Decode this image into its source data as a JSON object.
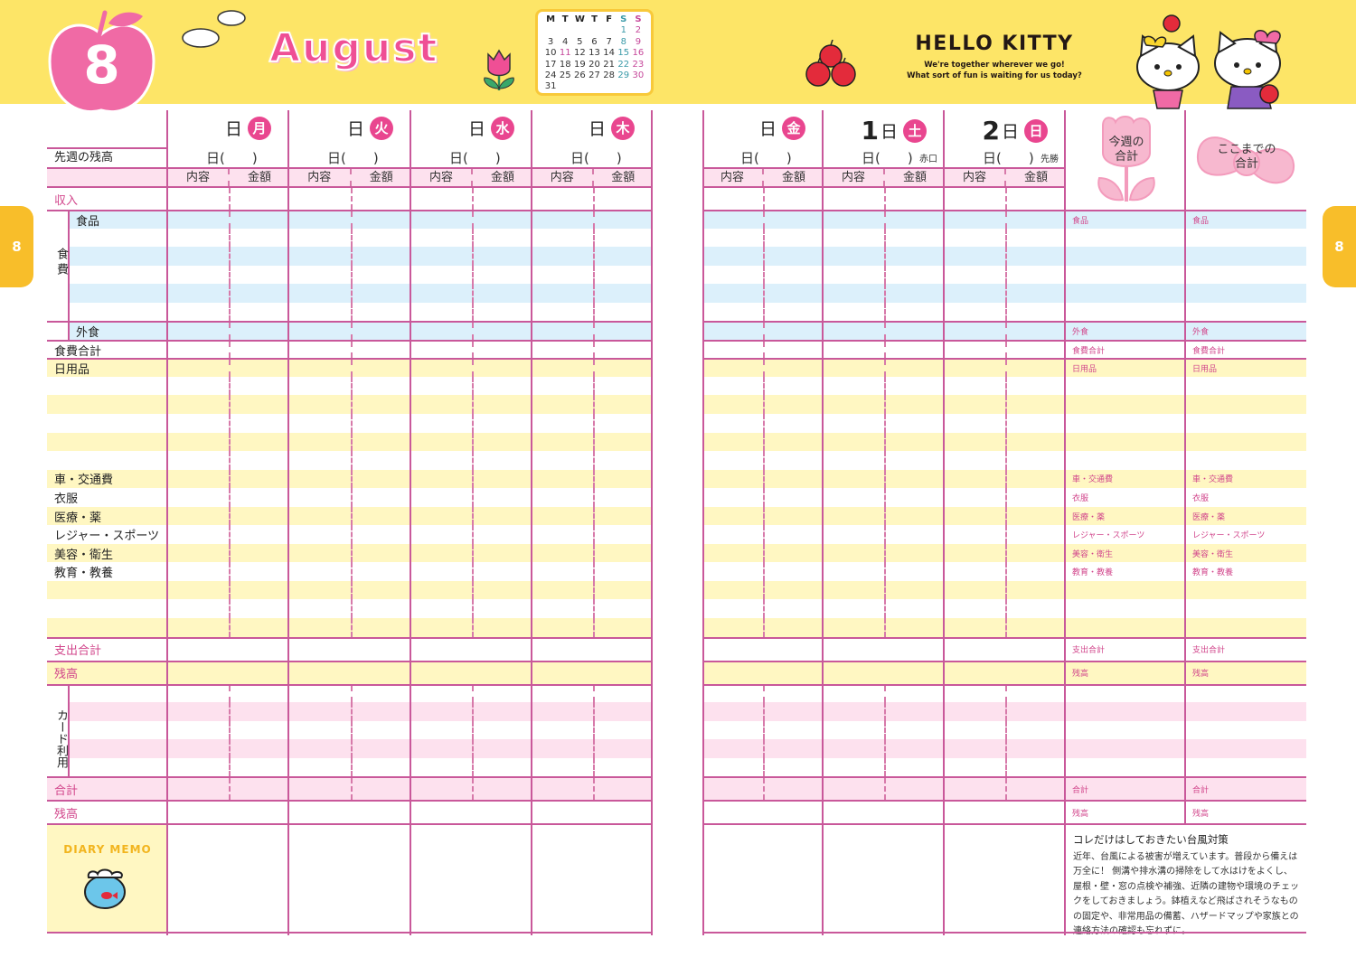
{
  "month_number": "8",
  "month_name": "August",
  "side_tab_label": "8",
  "calendar": {
    "headers": [
      "M",
      "T",
      "W",
      "T",
      "F",
      "S",
      "S"
    ],
    "weeks": [
      [
        "",
        "",
        "",
        "",
        "",
        "1",
        "2"
      ],
      [
        "3",
        "4",
        "5",
        "6",
        "7",
        "8",
        "9"
      ],
      [
        "10",
        "11",
        "12",
        "13",
        "14",
        "15",
        "16"
      ],
      [
        "17",
        "18",
        "19",
        "20",
        "21",
        "22",
        "23"
      ],
      [
        "24",
        "25",
        "26",
        "27",
        "28",
        "29",
        "30"
      ],
      [
        "31",
        "",
        "",
        "",
        "",
        "",
        ""
      ]
    ],
    "holidays": [
      "11"
    ]
  },
  "brand": {
    "title": "HELLO KITTY",
    "tagline_1": "We're together wherever we go!",
    "tagline_2": "What sort of fun is waiting for us today?"
  },
  "labels": {
    "last_week_balance": "先週の残高",
    "content": "内容",
    "amount": "金額",
    "day_suffix": "日",
    "date_placeholder": "日(　　)",
    "food_group": "食費",
    "card_group": "カード利用",
    "diary_memo": "DIARY MEMO",
    "weekly_total": "今週の合計",
    "running_total": "ここまでの合計"
  },
  "days_left": [
    {
      "num": "",
      "weekday": "月",
      "rokuyo": ""
    },
    {
      "num": "",
      "weekday": "火",
      "rokuyo": ""
    },
    {
      "num": "",
      "weekday": "水",
      "rokuyo": ""
    },
    {
      "num": "",
      "weekday": "木",
      "rokuyo": ""
    }
  ],
  "days_right": [
    {
      "num": "",
      "weekday": "金",
      "rokuyo": ""
    },
    {
      "num": "1",
      "weekday": "土",
      "rokuyo": "赤口"
    },
    {
      "num": "2",
      "weekday": "日",
      "rokuyo": "先勝"
    }
  ],
  "rows": [
    {
      "label": "収入",
      "tone": "white",
      "section": true,
      "line": true,
      "accent": true
    },
    {
      "label": "食品",
      "tone": "blue",
      "group": "food",
      "line": true,
      "summary": true
    },
    {
      "label": "",
      "tone": "white",
      "group": "food"
    },
    {
      "label": "",
      "tone": "blue",
      "group": "food"
    },
    {
      "label": "",
      "tone": "white",
      "group": "food"
    },
    {
      "label": "",
      "tone": "blue",
      "group": "food"
    },
    {
      "label": "",
      "tone": "white",
      "group": "food"
    },
    {
      "label": "外食",
      "tone": "blue",
      "group": "food",
      "line": true,
      "summary": true
    },
    {
      "label": "食費合計",
      "tone": "white",
      "line": true,
      "summary": true
    },
    {
      "label": "日用品",
      "tone": "yellow",
      "line": true,
      "summary": true
    },
    {
      "label": "",
      "tone": "white"
    },
    {
      "label": "",
      "tone": "yellow"
    },
    {
      "label": "",
      "tone": "white"
    },
    {
      "label": "",
      "tone": "yellow"
    },
    {
      "label": "",
      "tone": "white"
    },
    {
      "label": "車・交通費",
      "tone": "yellow",
      "summary": true
    },
    {
      "label": "衣服",
      "tone": "white",
      "summary": true
    },
    {
      "label": "医療・薬",
      "tone": "yellow",
      "summary": true
    },
    {
      "label": "レジャー・スポーツ",
      "tone": "white",
      "summary": true
    },
    {
      "label": "美容・衛生",
      "tone": "yellow",
      "summary": true
    },
    {
      "label": "教育・教養",
      "tone": "white",
      "summary": true
    },
    {
      "label": "",
      "tone": "yellow"
    },
    {
      "label": "",
      "tone": "white"
    },
    {
      "label": "",
      "tone": "yellow"
    },
    {
      "label": "支出合計",
      "tone": "white",
      "section": true,
      "line": true,
      "accent": true,
      "nodash": true,
      "summary": true
    },
    {
      "label": "残高",
      "tone": "yellow",
      "section": true,
      "line": true,
      "accent": true,
      "nodash": true,
      "summary": true
    },
    {
      "label": "",
      "tone": "white",
      "group": "card",
      "line": true
    },
    {
      "label": "",
      "tone": "pink",
      "group": "card"
    },
    {
      "label": "",
      "tone": "white",
      "group": "card"
    },
    {
      "label": "",
      "tone": "pink",
      "group": "card"
    },
    {
      "label": "",
      "tone": "white",
      "group": "card"
    },
    {
      "label": "合計",
      "tone": "pink",
      "section": true,
      "line": true,
      "accent": true,
      "summary": true
    },
    {
      "label": "残高",
      "tone": "white",
      "section": true,
      "line": true,
      "accent": true,
      "nodash": true,
      "summary": true
    }
  ],
  "memo": {
    "title": "コレだけはしておきたい台風対策",
    "body": "近年、台風による被害が増えています。普段から備えは万全に！ 側溝や排水溝の掃除をして水はけをよくし、屋根・壁・窓の点検や補強、近隣の建物や環境のチェックをしておきましょう。鉢植えなど飛ばされそうなものの固定や、非常用品の備蓄、ハザードマップや家族との連絡方法の確認も忘れずに。"
  },
  "colors": {
    "header_yellow": "#fde567",
    "accent_pink": "#e9468f",
    "grid_line": "#c9589a",
    "blue_band": "#dcf0fb",
    "yellow_band": "#fff7c2",
    "pink_band": "#fde1ee",
    "tab_orange": "#f8be2a"
  }
}
